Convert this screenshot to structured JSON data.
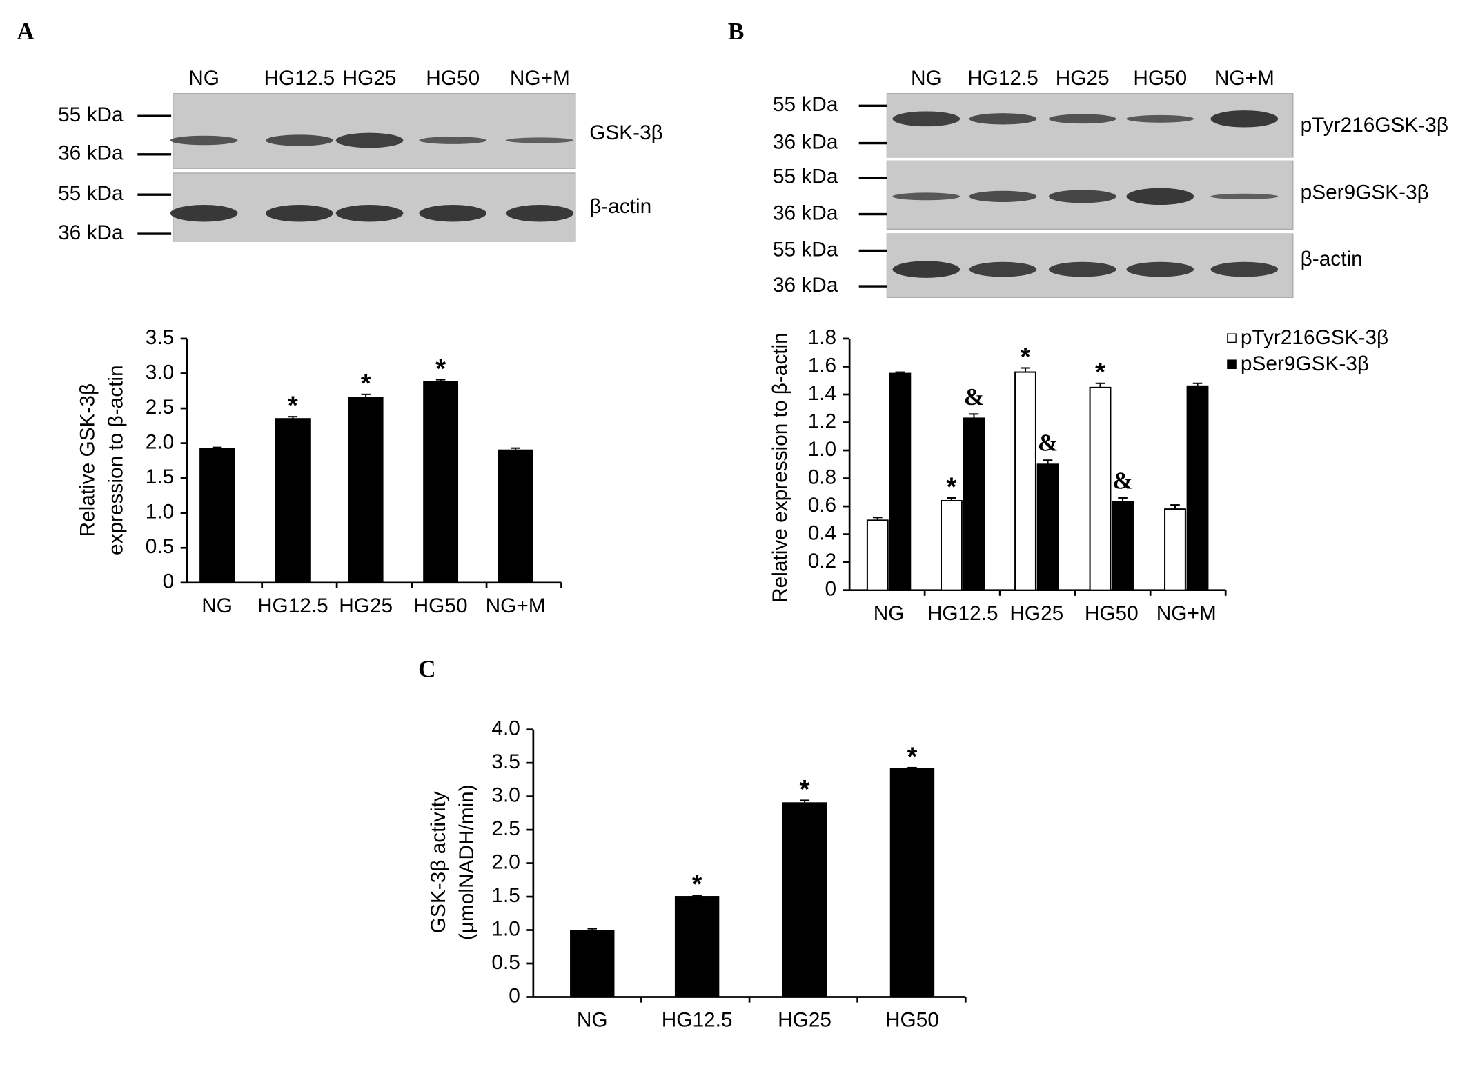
{
  "panel_labels": [
    "A",
    "B",
    "C"
  ],
  "blots": [
    {
      "lanes": [
        "NG",
        "HG12.5",
        "HG25",
        "HG50",
        "NG+M"
      ],
      "rows": [
        {
          "label": "GSK-3β",
          "sizes": [
            "55 kDa",
            "36 kDa"
          ]
        },
        {
          "label": "β-actin",
          "sizes": [
            "55 kDa",
            "36 kDa"
          ]
        }
      ]
    },
    {
      "lanes": [
        "NG",
        "HG12.5",
        "HG25",
        "HG50",
        "NG+M"
      ],
      "rows": [
        {
          "label": "pTyr216GSK-3β",
          "sizes": [
            "55 kDa",
            "36 kDa"
          ]
        },
        {
          "label": "pSer9GSK-3β",
          "sizes": [
            "55 kDa",
            "36 kDa"
          ]
        },
        {
          "label": "β-actin",
          "sizes": [
            "55 kDa",
            "36 kDa"
          ]
        }
      ]
    }
  ],
  "chart_data": [
    {
      "type": "bar",
      "y_label": [
        "Relative GSK-3β",
        "expression to β-actin"
      ],
      "categories": [
        "NG",
        "HG12.5",
        "HG25",
        "HG50",
        "NG+M"
      ],
      "values": [
        1.92,
        2.35,
        2.65,
        2.88,
        1.9
      ],
      "errors": [
        0.02,
        0.03,
        0.05,
        0.03,
        0.03
      ],
      "markers": [
        null,
        "*",
        "*",
        "*",
        null
      ],
      "color": "#000000",
      "ylim": [
        0,
        3.5
      ],
      "yticks": [
        0,
        0.5,
        {
          "value": 1,
          "label": "1.0"
        },
        1.5,
        {
          "value": 2,
          "label": "2.0"
        },
        2.5,
        {
          "value": 3,
          "label": "3.0"
        },
        3.5
      ]
    },
    {
      "type": "bar",
      "y_label": [
        "Relative expression to β-actin"
      ],
      "categories": [
        "NG",
        "HG12.5",
        "HG25",
        "HG50",
        "NG+M"
      ],
      "series": [
        {
          "name": "pTyr216GSK-3β",
          "color": "#ffffff",
          "values": [
            0.5,
            0.64,
            1.56,
            1.45,
            0.58
          ],
          "errors": [
            0.02,
            0.02,
            0.03,
            0.03,
            0.03
          ],
          "markers": [
            null,
            "*",
            "*",
            "*",
            null
          ]
        },
        {
          "name": "pSer9GSK-3β",
          "color": "#000000",
          "values": [
            1.55,
            1.23,
            0.9,
            0.63,
            1.46
          ],
          "errors": [
            0.01,
            0.03,
            0.03,
            0.03,
            0.02
          ],
          "markers": [
            null,
            "&",
            "&",
            "&",
            null
          ]
        }
      ],
      "ylim": [
        0,
        1.8
      ],
      "yticks": [
        0,
        0.2,
        0.4,
        0.6,
        0.8,
        {
          "value": 1,
          "label": "1.0"
        },
        1.2,
        1.4,
        1.6,
        1.8
      ],
      "legend": "upper right"
    },
    {
      "type": "bar",
      "y_label": [
        "GSK-3β activity",
        "(μmolNADH/min)"
      ],
      "categories": [
        "NG",
        "HG12.5",
        "HG25",
        "HG50"
      ],
      "values": [
        0.99,
        1.5,
        2.9,
        3.41
      ],
      "errors": [
        0.03,
        0.02,
        0.04,
        0.02
      ],
      "markers": [
        null,
        "*",
        "*",
        "*"
      ],
      "color": "#000000",
      "ylim": [
        0,
        4
      ],
      "yticks": [
        0,
        0.5,
        {
          "value": 1,
          "label": "1.0"
        },
        1.5,
        {
          "value": 2,
          "label": "2.0"
        },
        2.5,
        {
          "value": 3,
          "label": "3.0"
        },
        3.5,
        {
          "value": 4,
          "label": "4.0"
        }
      ]
    }
  ]
}
